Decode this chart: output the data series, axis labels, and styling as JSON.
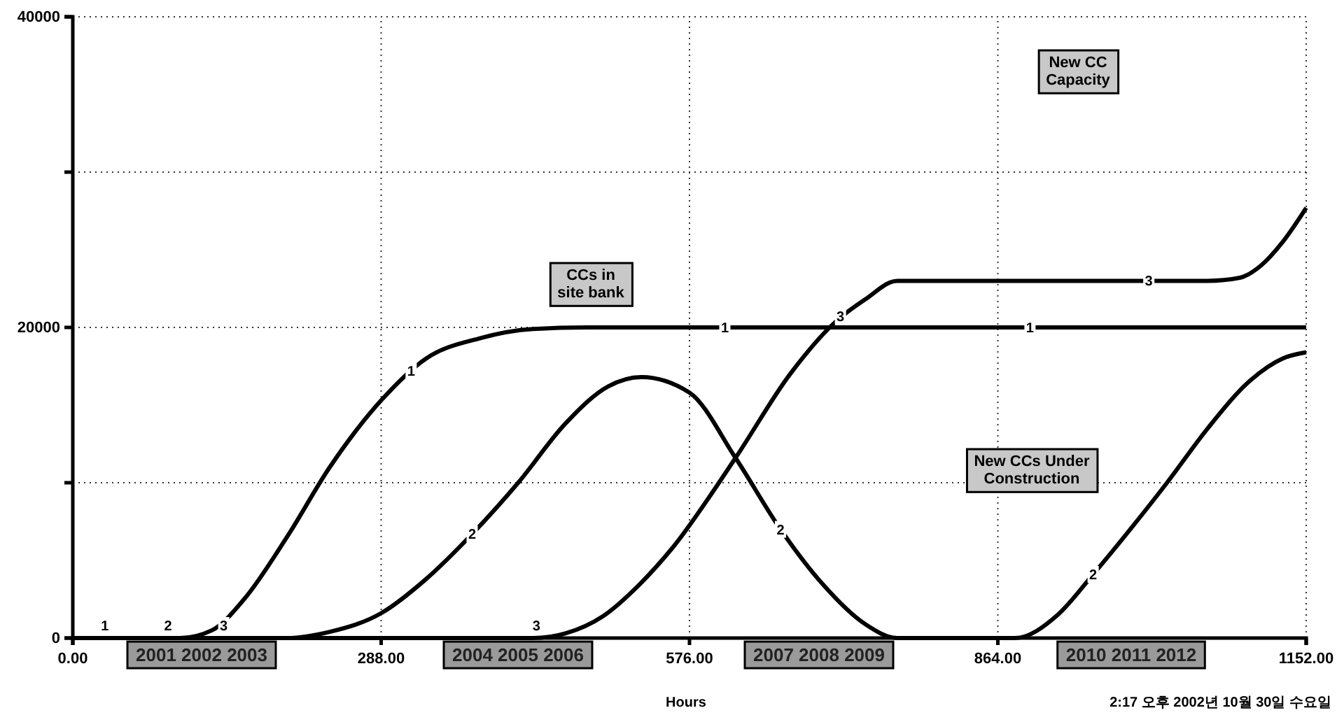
{
  "chart_data": {
    "type": "line",
    "xlabel": "Hours",
    "xlim": [
      0,
      1152
    ],
    "ylim": [
      0,
      40000
    ],
    "xticks": [
      {
        "value": 0,
        "label": "0.00"
      },
      {
        "value": 288,
        "label": "288.00"
      },
      {
        "value": 576,
        "label": "576.00"
      },
      {
        "value": 864,
        "label": "864.00"
      },
      {
        "value": 1152,
        "label": "1152.00"
      }
    ],
    "yticks": [
      0,
      {
        "value": 10000,
        "label": null
      },
      20000,
      {
        "value": 30000,
        "label": null
      },
      40000
    ],
    "grid": true,
    "legend": false,
    "line_style": "solid",
    "marker": "none",
    "series": [
      {
        "name": "CCs in site bank",
        "color": "#000000",
        "x": [
          0,
          100,
          130,
          160,
          200,
          240,
          288,
          330,
          380,
          430,
          480,
          1152
        ],
        "values": [
          0,
          0,
          500,
          2500,
          6500,
          11000,
          15300,
          18000,
          19300,
          19900,
          20000,
          20000
        ]
      },
      {
        "name": "New CCs Under Construction",
        "color": "#000000",
        "x": [
          0,
          200,
          240,
          288,
          330,
          373,
          416,
          460,
          500,
          531,
          576,
          619,
          661,
          700,
          740,
          770,
          880,
          920,
          953,
          990,
          1022,
          1060,
          1100,
          1130,
          1152
        ],
        "values": [
          0,
          0,
          400,
          1600,
          3800,
          6700,
          10000,
          13800,
          16200,
          16800,
          15800,
          11600,
          7000,
          3500,
          900,
          0,
          0,
          1500,
          4100,
          7200,
          10000,
          13500,
          16600,
          18000,
          18400
        ]
      },
      {
        "name": "New CC Capacity",
        "color": "#000000",
        "x": [
          0,
          430,
          460,
          495,
          530,
          560,
          619,
          670,
          713,
          740,
          770,
          1060,
          1090,
          1110,
          1130,
          1152
        ],
        "values": [
          0,
          0,
          300,
          1400,
          3500,
          5800,
          11600,
          17000,
          20400,
          21800,
          23000,
          23000,
          23200,
          24000,
          25500,
          27700
        ]
      }
    ],
    "annotations": [
      {
        "text": "1",
        "x": 30,
        "y": 0
      },
      {
        "text": "1",
        "x": 316,
        "y": 17200
      },
      {
        "text": "1",
        "x": 609,
        "y": 20000
      },
      {
        "text": "1",
        "x": 894,
        "y": 20000
      },
      {
        "text": "2",
        "x": 89,
        "y": 0
      },
      {
        "text": "2",
        "x": 373,
        "y": 6700
      },
      {
        "text": "2",
        "x": 661,
        "y": 7000
      },
      {
        "text": "2",
        "x": 953,
        "y": 4100
      },
      {
        "text": "3",
        "x": 141,
        "y": 0
      },
      {
        "text": "3",
        "x": 433,
        "y": 0
      },
      {
        "text": "3",
        "x": 717,
        "y": 20700
      },
      {
        "text": "3",
        "x": 1005,
        "y": 23000
      },
      "2001 2002 2003",
      "2004 2005 2006",
      "2007 2008 2009",
      "2010 2011 2012",
      "2:17 오후   2002년 10월 30일 수요일"
    ]
  }
}
